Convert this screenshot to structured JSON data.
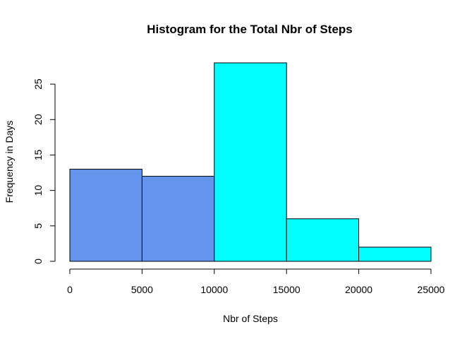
{
  "chart_data": {
    "type": "bar",
    "title": "Histogram for the Total Nbr of Steps",
    "xlabel": "Nbr of Steps",
    "ylabel": "Frequency in Days",
    "bins": [
      {
        "from": 0,
        "to": 5000,
        "count": 13,
        "color": "#6495ED"
      },
      {
        "from": 5000,
        "to": 10000,
        "count": 12,
        "color": "#6495ED"
      },
      {
        "from": 10000,
        "to": 15000,
        "count": 28,
        "color": "#00FFFF"
      },
      {
        "from": 15000,
        "to": 20000,
        "count": 6,
        "color": "#00FFFF"
      },
      {
        "from": 20000,
        "to": 25000,
        "count": 2,
        "color": "#00FFFF"
      }
    ],
    "xlim": [
      0,
      25000
    ],
    "ylim": [
      0,
      28
    ],
    "x_ticks": [
      0,
      5000,
      10000,
      15000,
      20000,
      25000
    ],
    "x_tick_labels": [
      "0",
      "5000",
      "10000",
      "15000",
      "20000",
      "25000"
    ],
    "y_ticks": [
      0,
      5,
      10,
      15,
      20,
      25
    ],
    "y_tick_labels": [
      "0",
      "5",
      "10",
      "15",
      "20",
      "25"
    ],
    "grid": false,
    "legend": "none"
  }
}
